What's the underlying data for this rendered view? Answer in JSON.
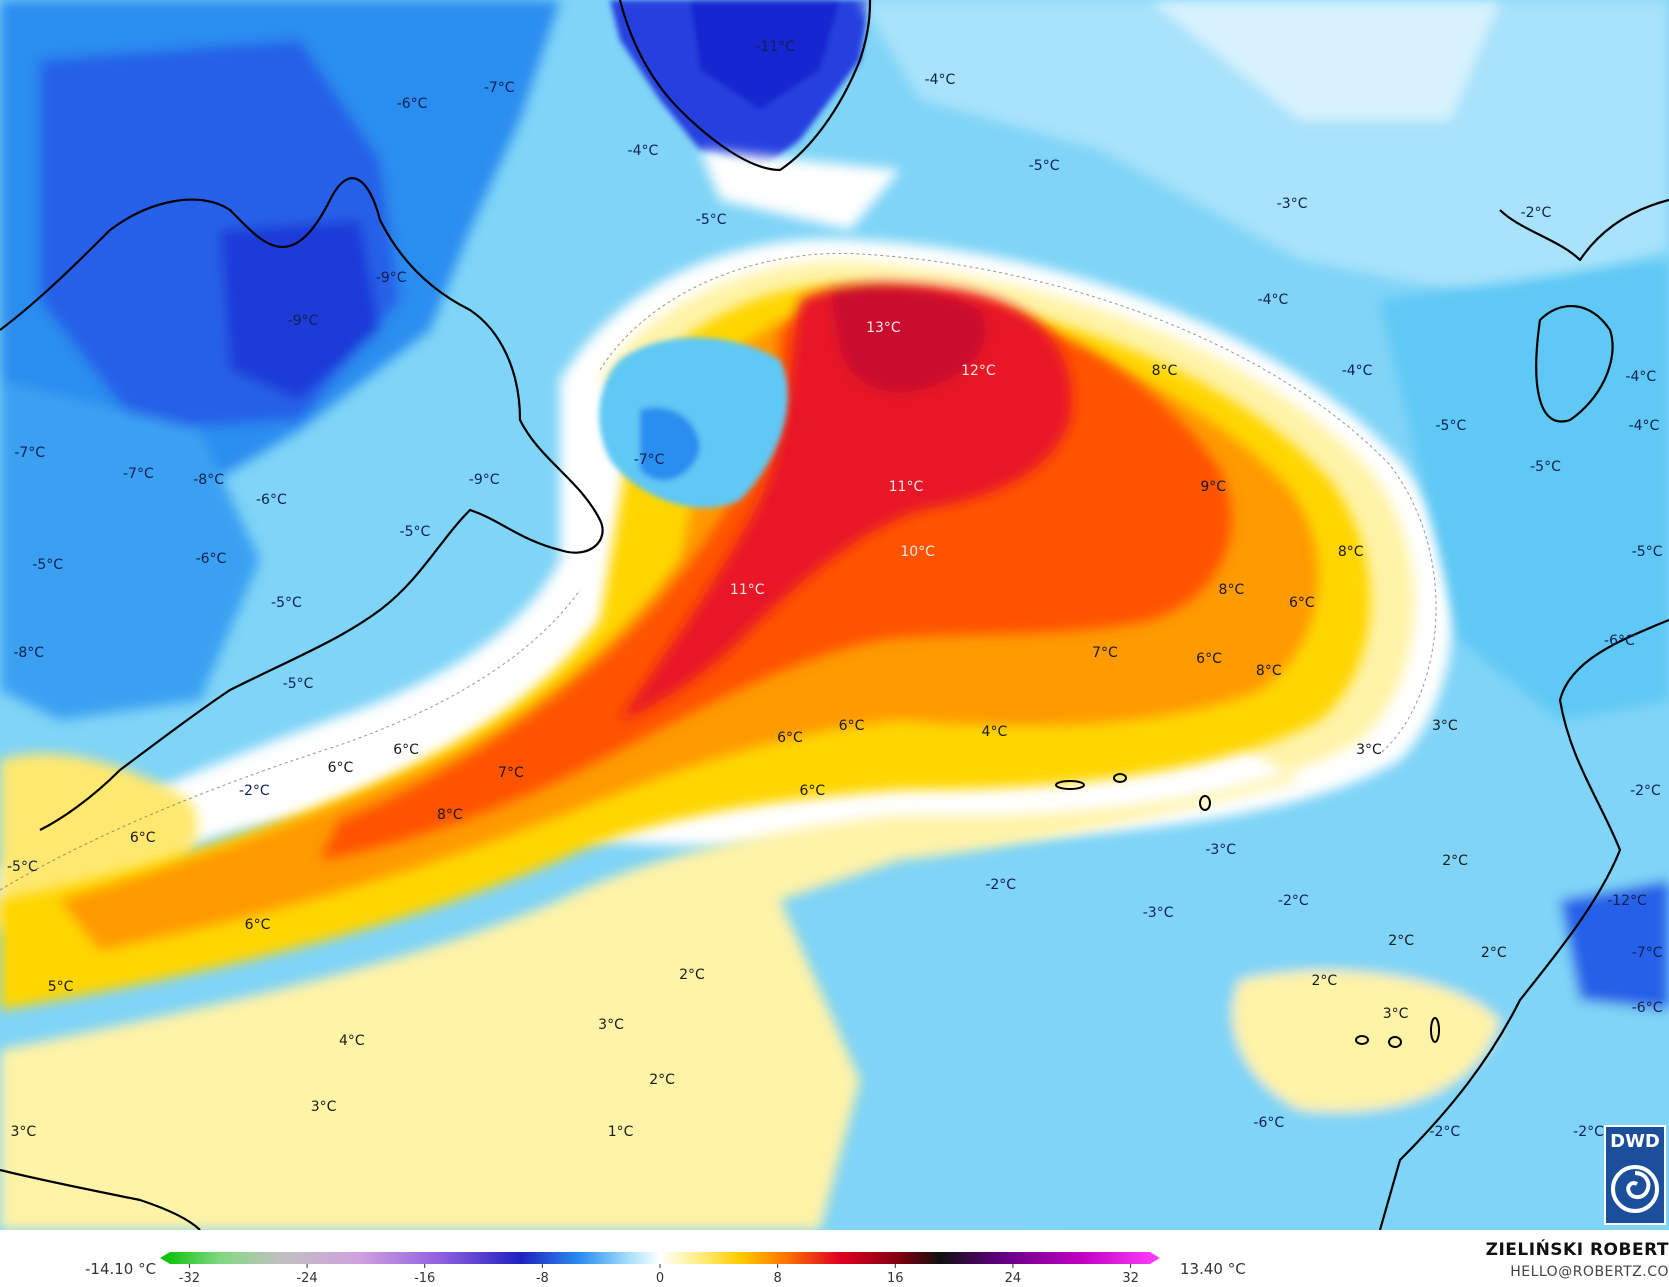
{
  "colors": {
    "coldest": "#2030d0",
    "cold": "#2a8df0",
    "cool": "#5ec8f5",
    "light_blue": "#bfe9fb",
    "white": "#ffffff",
    "pale_yellow": "#fff3a8",
    "yellow": "#ffd600",
    "orange": "#ff9a00",
    "red_orange": "#ff4a00",
    "red": "#e00020",
    "deep_red": "#c00030"
  },
  "labels": [
    {
      "text": "-11°C",
      "lon": 0.4645,
      "lat": 0.0385,
      "tone": "cold"
    },
    {
      "text": "-4°C",
      "lon": 0.5632,
      "lat": 0.0648,
      "tone": "cold"
    },
    {
      "text": "-6°C",
      "lon": 0.2469,
      "lat": 0.0849,
      "tone": "cold"
    },
    {
      "text": "-7°C",
      "lon": 0.2991,
      "lat": 0.0717,
      "tone": "cold"
    },
    {
      "text": "-4°C",
      "lon": 0.3852,
      "lat": 0.1226,
      "tone": "cold"
    },
    {
      "text": "-5°C",
      "lon": 0.6256,
      "lat": 0.1352,
      "tone": "cold"
    },
    {
      "text": "-3°C",
      "lon": 0.7742,
      "lat": 0.1659,
      "tone": "cold"
    },
    {
      "text": "-2°C",
      "lon": 0.9203,
      "lat": 0.173,
      "tone": "cold"
    },
    {
      "text": "-5°C",
      "lon": 0.4261,
      "lat": 0.1785,
      "tone": "cold"
    },
    {
      "text": "-9°C",
      "lon": 0.2344,
      "lat": 0.2262,
      "tone": "cold"
    },
    {
      "text": "-9°C",
      "lon": 0.1816,
      "lat": 0.2613,
      "tone": "cold"
    },
    {
      "text": "-4°C",
      "lon": 0.7627,
      "lat": 0.2435,
      "tone": "cold"
    },
    {
      "text": "13°C",
      "lon": 0.5293,
      "lat": 0.267,
      "tone": "hot"
    },
    {
      "text": "12°C",
      "lon": 0.5862,
      "lat": 0.3016,
      "tone": "hot"
    },
    {
      "text": "8°C",
      "lon": 0.6977,
      "lat": 0.3016,
      "tone": "warm"
    },
    {
      "text": "-4°C",
      "lon": 0.8131,
      "lat": 0.3016,
      "tone": "cold"
    },
    {
      "text": "-4°C",
      "lon": 0.9831,
      "lat": 0.3065,
      "tone": "cold"
    },
    {
      "text": "-5°C",
      "lon": 0.8693,
      "lat": 0.3463,
      "tone": "cold"
    },
    {
      "text": "-4°C",
      "lon": 0.985,
      "lat": 0.3463,
      "tone": "cold"
    },
    {
      "text": "-7°C",
      "lon": 0.0178,
      "lat": 0.3683,
      "tone": "cold"
    },
    {
      "text": "-7°C",
      "lon": 0.3889,
      "lat": 0.374,
      "tone": "cold"
    },
    {
      "text": "-7°C",
      "lon": 0.0829,
      "lat": 0.3854,
      "tone": "cold"
    },
    {
      "text": "-8°C",
      "lon": 0.125,
      "lat": 0.3902,
      "tone": "cold"
    },
    {
      "text": "-9°C",
      "lon": 0.2901,
      "lat": 0.3902,
      "tone": "cold"
    },
    {
      "text": "-6°C",
      "lon": 0.1626,
      "lat": 0.4065,
      "tone": "cold"
    },
    {
      "text": "11°C",
      "lon": 0.5428,
      "lat": 0.3959,
      "tone": "hot"
    },
    {
      "text": "9°C",
      "lon": 0.7269,
      "lat": 0.3959,
      "tone": "warm"
    },
    {
      "text": "-5°C",
      "lon": 0.926,
      "lat": 0.3797,
      "tone": "cold"
    },
    {
      "text": "-5°C",
      "lon": 0.2486,
      "lat": 0.4325,
      "tone": "cold"
    },
    {
      "text": "10°C",
      "lon": 0.5498,
      "lat": 0.4488,
      "tone": "hot"
    },
    {
      "text": "8°C",
      "lon": 0.8093,
      "lat": 0.4488,
      "tone": "warm"
    },
    {
      "text": "-5°C",
      "lon": 0.9869,
      "lat": 0.4488,
      "tone": "cold"
    },
    {
      "text": "-5°C",
      "lon": 0.0286,
      "lat": 0.4593,
      "tone": "cold"
    },
    {
      "text": "-6°C",
      "lon": 0.1264,
      "lat": 0.4545,
      "tone": "cold"
    },
    {
      "text": "11°C",
      "lon": 0.4477,
      "lat": 0.4797,
      "tone": "hot"
    },
    {
      "text": "8°C",
      "lon": 0.7378,
      "lat": 0.4797,
      "tone": "warm"
    },
    {
      "text": "6°C",
      "lon": 0.78,
      "lat": 0.4902,
      "tone": "warm"
    },
    {
      "text": "-5°C",
      "lon": 0.1716,
      "lat": 0.4902,
      "tone": "cold"
    },
    {
      "text": "-6°C",
      "lon": 0.9703,
      "lat": 0.5211,
      "tone": "cold"
    },
    {
      "text": "-8°C",
      "lon": 0.0172,
      "lat": 0.5309,
      "tone": "cold"
    },
    {
      "text": "7°C",
      "lon": 0.662,
      "lat": 0.5309,
      "tone": "warm"
    },
    {
      "text": "6°C",
      "lon": 0.7244,
      "lat": 0.5358,
      "tone": "warm"
    },
    {
      "text": "8°C",
      "lon": 0.7602,
      "lat": 0.5455,
      "tone": "warm"
    },
    {
      "text": "-5°C",
      "lon": 0.1786,
      "lat": 0.5561,
      "tone": "cold"
    },
    {
      "text": "6°C",
      "lon": 0.5102,
      "lat": 0.5902,
      "tone": "warm"
    },
    {
      "text": "6°C",
      "lon": 0.4733,
      "lat": 0.6,
      "tone": "warm"
    },
    {
      "text": "4°C",
      "lon": 0.5958,
      "lat": 0.5951,
      "tone": "warm"
    },
    {
      "text": "3°C",
      "lon": 0.8657,
      "lat": 0.5902,
      "tone": "warm"
    },
    {
      "text": "3°C",
      "lon": 0.8202,
      "lat": 0.6098,
      "tone": "warm"
    },
    {
      "text": "6°C",
      "lon": 0.2433,
      "lat": 0.6098,
      "tone": "warm"
    },
    {
      "text": "6°C",
      "lon": 0.204,
      "lat": 0.6244,
      "tone": "warm"
    },
    {
      "text": "7°C",
      "lon": 0.3061,
      "lat": 0.6285,
      "tone": "warm"
    },
    {
      "text": "-2°C",
      "lon": 0.1524,
      "lat": 0.6431,
      "tone": "cold"
    },
    {
      "text": "6°C",
      "lon": 0.4867,
      "lat": 0.6431,
      "tone": "warm"
    },
    {
      "text": "-2°C",
      "lon": 0.9859,
      "lat": 0.6431,
      "tone": "cold"
    },
    {
      "text": "8°C",
      "lon": 0.2695,
      "lat": 0.6626,
      "tone": "warm"
    },
    {
      "text": "6°C",
      "lon": 0.0855,
      "lat": 0.6813,
      "tone": "warm"
    },
    {
      "text": "-3°C",
      "lon": 0.7314,
      "lat": 0.6911,
      "tone": "cold"
    },
    {
      "text": "2°C",
      "lon": 0.8718,
      "lat": 0.7,
      "tone": "warm"
    },
    {
      "text": "-5°C",
      "lon": 0.0134,
      "lat": 0.7049,
      "tone": "cold"
    },
    {
      "text": "-2°C",
      "lon": 0.5996,
      "lat": 0.7195,
      "tone": "cold"
    },
    {
      "text": "-2°C",
      "lon": 0.7749,
      "lat": 0.7325,
      "tone": "cold"
    },
    {
      "text": "-12°C",
      "lon": 0.9748,
      "lat": 0.7325,
      "tone": "cold"
    },
    {
      "text": "-3°C",
      "lon": 0.6939,
      "lat": 0.7423,
      "tone": "cold"
    },
    {
      "text": "6°C",
      "lon": 0.1543,
      "lat": 0.752,
      "tone": "warm"
    },
    {
      "text": "2°C",
      "lon": 0.8395,
      "lat": 0.765,
      "tone": "warm"
    },
    {
      "text": "2°C",
      "lon": 0.895,
      "lat": 0.7748,
      "tone": "warm"
    },
    {
      "text": "-7°C",
      "lon": 0.9869,
      "lat": 0.7748,
      "tone": "cold"
    },
    {
      "text": "2°C",
      "lon": 0.4146,
      "lat": 0.7927,
      "tone": "warm"
    },
    {
      "text": "2°C",
      "lon": 0.7935,
      "lat": 0.7976,
      "tone": "warm"
    },
    {
      "text": "5°C",
      "lon": 0.0363,
      "lat": 0.8024,
      "tone": "warm"
    },
    {
      "text": "-6°C",
      "lon": 0.9869,
      "lat": 0.8195,
      "tone": "cold"
    },
    {
      "text": "3°C",
      "lon": 0.8362,
      "lat": 0.8244,
      "tone": "warm"
    },
    {
      "text": "3°C",
      "lon": 0.3661,
      "lat": 0.8333,
      "tone": "warm"
    },
    {
      "text": "4°C",
      "lon": 0.2108,
      "lat": 0.8463,
      "tone": "warm"
    },
    {
      "text": "2°C",
      "lon": 0.3967,
      "lat": 0.878,
      "tone": "warm"
    },
    {
      "text": "3°C",
      "lon": 0.1939,
      "lat": 0.9,
      "tone": "warm"
    },
    {
      "text": "-6°C",
      "lon": 0.7602,
      "lat": 0.913,
      "tone": "cold"
    },
    {
      "text": "-2°C",
      "lon": 0.8657,
      "lat": 0.9203,
      "tone": "cold"
    },
    {
      "text": "-2°C",
      "lon": 0.9518,
      "lat": 0.9203,
      "tone": "cold"
    },
    {
      "text": "3°C",
      "lon": 0.014,
      "lat": 0.9203,
      "tone": "warm"
    },
    {
      "text": "1°C",
      "lon": 0.3718,
      "lat": 0.9203,
      "tone": "warm"
    }
  ],
  "legend": {
    "min_label": "-14.10 °C",
    "max_label": "13.40 °C",
    "ticks": [
      "-32",
      "-24",
      "-16",
      "-8",
      "0",
      "8",
      "16",
      "24",
      "32"
    ],
    "tick_values": [
      -32,
      -24,
      -16,
      -8,
      0,
      8,
      16,
      24,
      32
    ],
    "range": [
      -34,
      34
    ]
  },
  "credit": {
    "name": "ZIELIŃSKI ROBERT",
    "email": "HELLO@ROBERTZ.CO"
  },
  "logo": {
    "text": "DWD"
  }
}
